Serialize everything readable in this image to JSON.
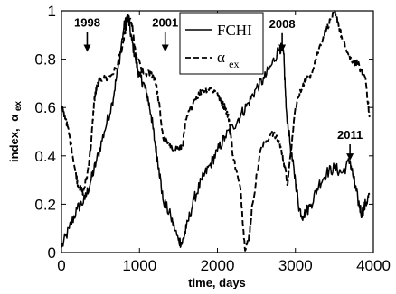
{
  "chart_data": {
    "type": "line",
    "title": "",
    "xlabel": "time, days",
    "ylabel_main": "index,",
    "ylabel_symbol": "α",
    "ylabel_sub": "ex",
    "xlim": [
      0,
      4000
    ],
    "ylim": [
      0,
      1
    ],
    "x_ticks": [
      0,
      1000,
      2000,
      3000,
      4000
    ],
    "x_tick_labels": [
      "0",
      "1000",
      "2000",
      "3000",
      "4000"
    ],
    "y_ticks": [
      0,
      0.2,
      0.4,
      0.6,
      0.8,
      1
    ],
    "y_tick_labels": [
      "0",
      "0.2",
      "0.4",
      "0.6",
      "0.8",
      "1"
    ],
    "grid": false,
    "legend_position": "top-center",
    "series": [
      {
        "name": "FCHI",
        "legend_label": "FCHI",
        "style": "solid",
        "color": "#000000",
        "points": [
          [
            0,
            0.02
          ],
          [
            100,
            0.1
          ],
          [
            200,
            0.18
          ],
          [
            300,
            0.22
          ],
          [
            380,
            0.3
          ],
          [
            450,
            0.38
          ],
          [
            550,
            0.5
          ],
          [
            650,
            0.62
          ],
          [
            720,
            0.75
          ],
          [
            800,
            0.93
          ],
          [
            850,
            0.98
          ],
          [
            900,
            0.88
          ],
          [
            950,
            0.8
          ],
          [
            1000,
            0.73
          ],
          [
            1050,
            0.7
          ],
          [
            1100,
            0.65
          ],
          [
            1150,
            0.57
          ],
          [
            1200,
            0.45
          ],
          [
            1250,
            0.35
          ],
          [
            1300,
            0.22
          ],
          [
            1400,
            0.15
          ],
          [
            1500,
            0.05
          ],
          [
            1550,
            0.04
          ],
          [
            1600,
            0.1
          ],
          [
            1700,
            0.22
          ],
          [
            1800,
            0.3
          ],
          [
            1900,
            0.36
          ],
          [
            2000,
            0.42
          ],
          [
            2100,
            0.48
          ],
          [
            2200,
            0.52
          ],
          [
            2300,
            0.57
          ],
          [
            2400,
            0.62
          ],
          [
            2500,
            0.68
          ],
          [
            2600,
            0.72
          ],
          [
            2700,
            0.78
          ],
          [
            2800,
            0.85
          ],
          [
            2850,
            0.82
          ],
          [
            2880,
            0.6
          ],
          [
            2950,
            0.4
          ],
          [
            3000,
            0.3
          ],
          [
            3050,
            0.18
          ],
          [
            3100,
            0.15
          ],
          [
            3200,
            0.2
          ],
          [
            3300,
            0.28
          ],
          [
            3400,
            0.33
          ],
          [
            3500,
            0.35
          ],
          [
            3600,
            0.33
          ],
          [
            3700,
            0.38
          ],
          [
            3750,
            0.3
          ],
          [
            3800,
            0.22
          ],
          [
            3850,
            0.16
          ],
          [
            3900,
            0.2
          ],
          [
            3950,
            0.24
          ]
        ]
      },
      {
        "name": "α_ex",
        "legend_label": "α",
        "legend_sub": "ex",
        "style": "dashed",
        "color": "#000000",
        "points": [
          [
            0,
            0.6
          ],
          [
            60,
            0.55
          ],
          [
            120,
            0.45
          ],
          [
            180,
            0.33
          ],
          [
            220,
            0.27
          ],
          [
            280,
            0.25
          ],
          [
            330,
            0.32
          ],
          [
            380,
            0.45
          ],
          [
            420,
            0.63
          ],
          [
            450,
            0.68
          ],
          [
            500,
            0.72
          ],
          [
            600,
            0.72
          ],
          [
            700,
            0.76
          ],
          [
            800,
            0.88
          ],
          [
            850,
            0.97
          ],
          [
            900,
            0.95
          ],
          [
            950,
            0.82
          ],
          [
            1050,
            0.74
          ],
          [
            1150,
            0.74
          ],
          [
            1200,
            0.72
          ],
          [
            1250,
            0.62
          ],
          [
            1300,
            0.48
          ],
          [
            1400,
            0.43
          ],
          [
            1500,
            0.43
          ],
          [
            1550,
            0.44
          ],
          [
            1600,
            0.55
          ],
          [
            1700,
            0.63
          ],
          [
            1800,
            0.67
          ],
          [
            1900,
            0.68
          ],
          [
            2000,
            0.66
          ],
          [
            2050,
            0.62
          ],
          [
            2100,
            0.6
          ],
          [
            2150,
            0.55
          ],
          [
            2200,
            0.4
          ],
          [
            2300,
            0.25
          ],
          [
            2350,
            0.02
          ],
          [
            2400,
            0.05
          ],
          [
            2450,
            0.2
          ],
          [
            2550,
            0.42
          ],
          [
            2700,
            0.5
          ],
          [
            2800,
            0.45
          ],
          [
            2850,
            0.38
          ],
          [
            2900,
            0.28
          ],
          [
            3000,
            0.6
          ],
          [
            3100,
            0.7
          ],
          [
            3200,
            0.74
          ],
          [
            3300,
            0.84
          ],
          [
            3400,
            0.93
          ],
          [
            3500,
            0.99
          ],
          [
            3550,
            0.95
          ],
          [
            3600,
            0.88
          ],
          [
            3700,
            0.8
          ],
          [
            3800,
            0.78
          ],
          [
            3900,
            0.72
          ],
          [
            3950,
            0.56
          ]
        ]
      }
    ],
    "annotations": [
      {
        "text": "1998",
        "x": 330,
        "y": 0.83,
        "label_y": 0.935
      },
      {
        "text": "2001",
        "x": 1330,
        "y": 0.83,
        "label_y": 0.935
      },
      {
        "text": "2008",
        "x": 2830,
        "y": 0.83,
        "label_y": 0.93
      },
      {
        "text": "2011",
        "x": 3700,
        "y": 0.38,
        "label_y": 0.47
      }
    ]
  }
}
